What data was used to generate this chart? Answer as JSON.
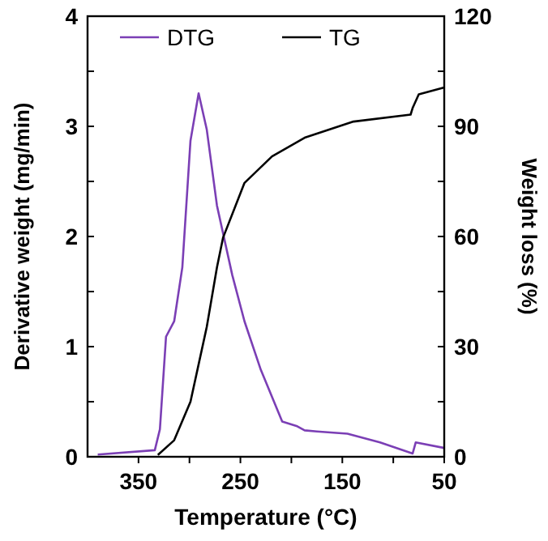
{
  "chart_data": {
    "type": "line",
    "xlabel": "Temperature (°C)",
    "ylabel": "Derivative weight (mg/min)",
    "y2label": "Weight loss (%)",
    "xlim": [
      400,
      50
    ],
    "xticks": [
      {
        "value": 350,
        "label": "350"
      },
      {
        "value": 300,
        "label": null
      },
      {
        "value": 250,
        "label": "250"
      },
      {
        "value": 200,
        "label": null
      },
      {
        "value": 150,
        "label": "150"
      },
      {
        "value": 100,
        "label": null
      },
      {
        "value": 50,
        "label": "50"
      }
    ],
    "ylim": [
      0,
      4
    ],
    "yticks": [
      0,
      {
        "value": 0.5,
        "label": null
      },
      1,
      {
        "value": 1.5,
        "label": null
      },
      2,
      {
        "value": 2.5,
        "label": null
      },
      3,
      {
        "value": 3.5,
        "label": null
      },
      4
    ],
    "y2lim": [
      0,
      120
    ],
    "y2ticks": [
      0,
      {
        "value": 15,
        "label": null
      },
      30,
      {
        "value": 45,
        "label": null
      },
      60,
      {
        "value": 75,
        "label": null
      },
      90,
      {
        "value": 105,
        "label": null
      },
      120
    ],
    "legend": "top",
    "grid": false,
    "series": [
      {
        "name": "DTG",
        "color": "#7b3fb5",
        "x": [
          390,
          334,
          329,
          323,
          315,
          307,
          299,
          291,
          283,
          273,
          258,
          246,
          230,
          209,
          195,
          187,
          175,
          145,
          113,
          81,
          78,
          50
        ],
        "values": [
          0.02,
          0.06,
          0.25,
          1.09,
          1.23,
          1.72,
          2.87,
          3.3,
          2.97,
          2.28,
          1.65,
          1.23,
          0.79,
          0.32,
          0.28,
          0.24,
          0.23,
          0.21,
          0.13,
          0.03,
          0.13,
          0.08
        ]
      },
      {
        "name": "TG",
        "color": "#000000",
        "axis": "y2",
        "x": [
          331,
          315,
          299,
          283,
          273,
          267,
          246,
          219,
          187,
          139,
          83,
          81,
          75,
          50
        ],
        "values": [
          0.5,
          4.5,
          15,
          35.4,
          51.6,
          59.7,
          74.6,
          81.8,
          86.9,
          91.3,
          93.2,
          95,
          98.7,
          100.6
        ]
      }
    ]
  }
}
